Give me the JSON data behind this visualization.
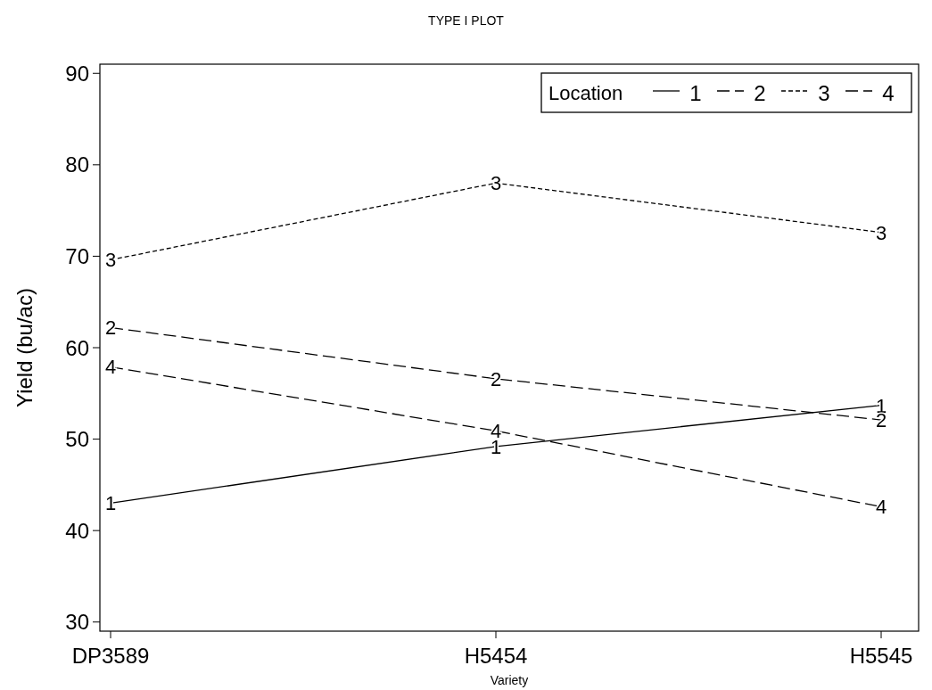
{
  "chart_data": {
    "type": "line",
    "title": "TYPE I PLOT",
    "xlabel": "Variety",
    "ylabel": "Yield (bu/ac)",
    "legend_title": "Location",
    "legend": "top right",
    "categories": [
      "DP3589",
      "H5454",
      "H5545"
    ],
    "ylim": [
      29,
      91
    ],
    "yticks": [
      30,
      40,
      50,
      60,
      70,
      80,
      90
    ],
    "grid": false,
    "series": [
      {
        "name": "1",
        "color": "#000000",
        "line_style": "solid",
        "values": [
          43.0,
          49.2,
          53.7
        ]
      },
      {
        "name": "2",
        "color": "#000000",
        "line_style": "dashed",
        "values": [
          62.2,
          56.6,
          52.1
        ]
      },
      {
        "name": "3",
        "color": "#000000",
        "line_style": "dotted",
        "values": [
          69.6,
          78.0,
          72.6
        ]
      },
      {
        "name": "4",
        "color": "#000000",
        "line_style": "dashed",
        "values": [
          57.9,
          50.9,
          42.6
        ]
      }
    ]
  }
}
